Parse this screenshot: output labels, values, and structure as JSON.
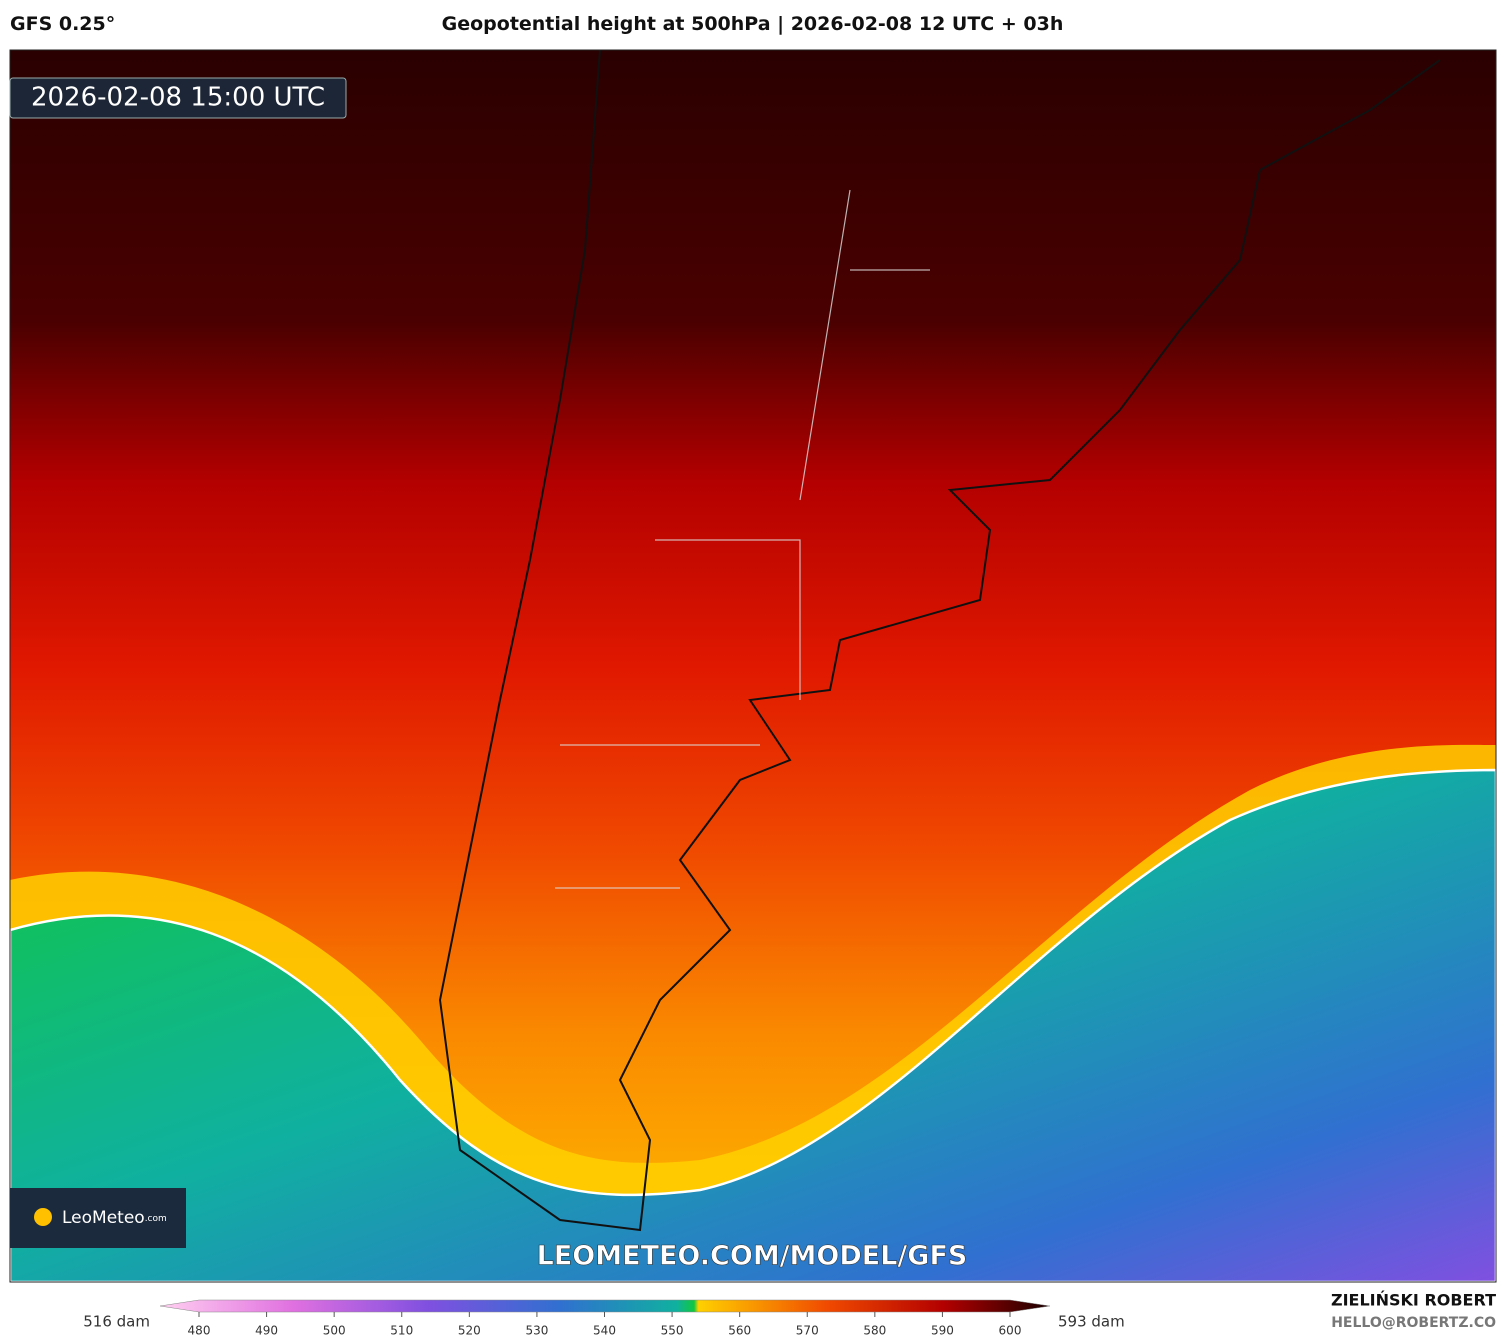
{
  "header": {
    "model": "GFS 0.25°",
    "title": "Geopotential height at 500hPa | 2026-02-08 12 UTC + 03h"
  },
  "map": {
    "timestamp": "2026-02-08 15:00 UTC",
    "logo": "LeoMeteo",
    "logo_suffix": ".com",
    "watermark": "LEOMETEO.COM/MODEL/GFS"
  },
  "colorbar": {
    "min_label": "516 dam",
    "max_label": "593 dam",
    "ticks": [
      480,
      490,
      500,
      510,
      520,
      530,
      540,
      550,
      560,
      570,
      580,
      590,
      600
    ]
  },
  "credits": {
    "author": "ZIELIŃSKI ROBERT",
    "email": "HELLO@ROBERTZ.CO"
  }
}
